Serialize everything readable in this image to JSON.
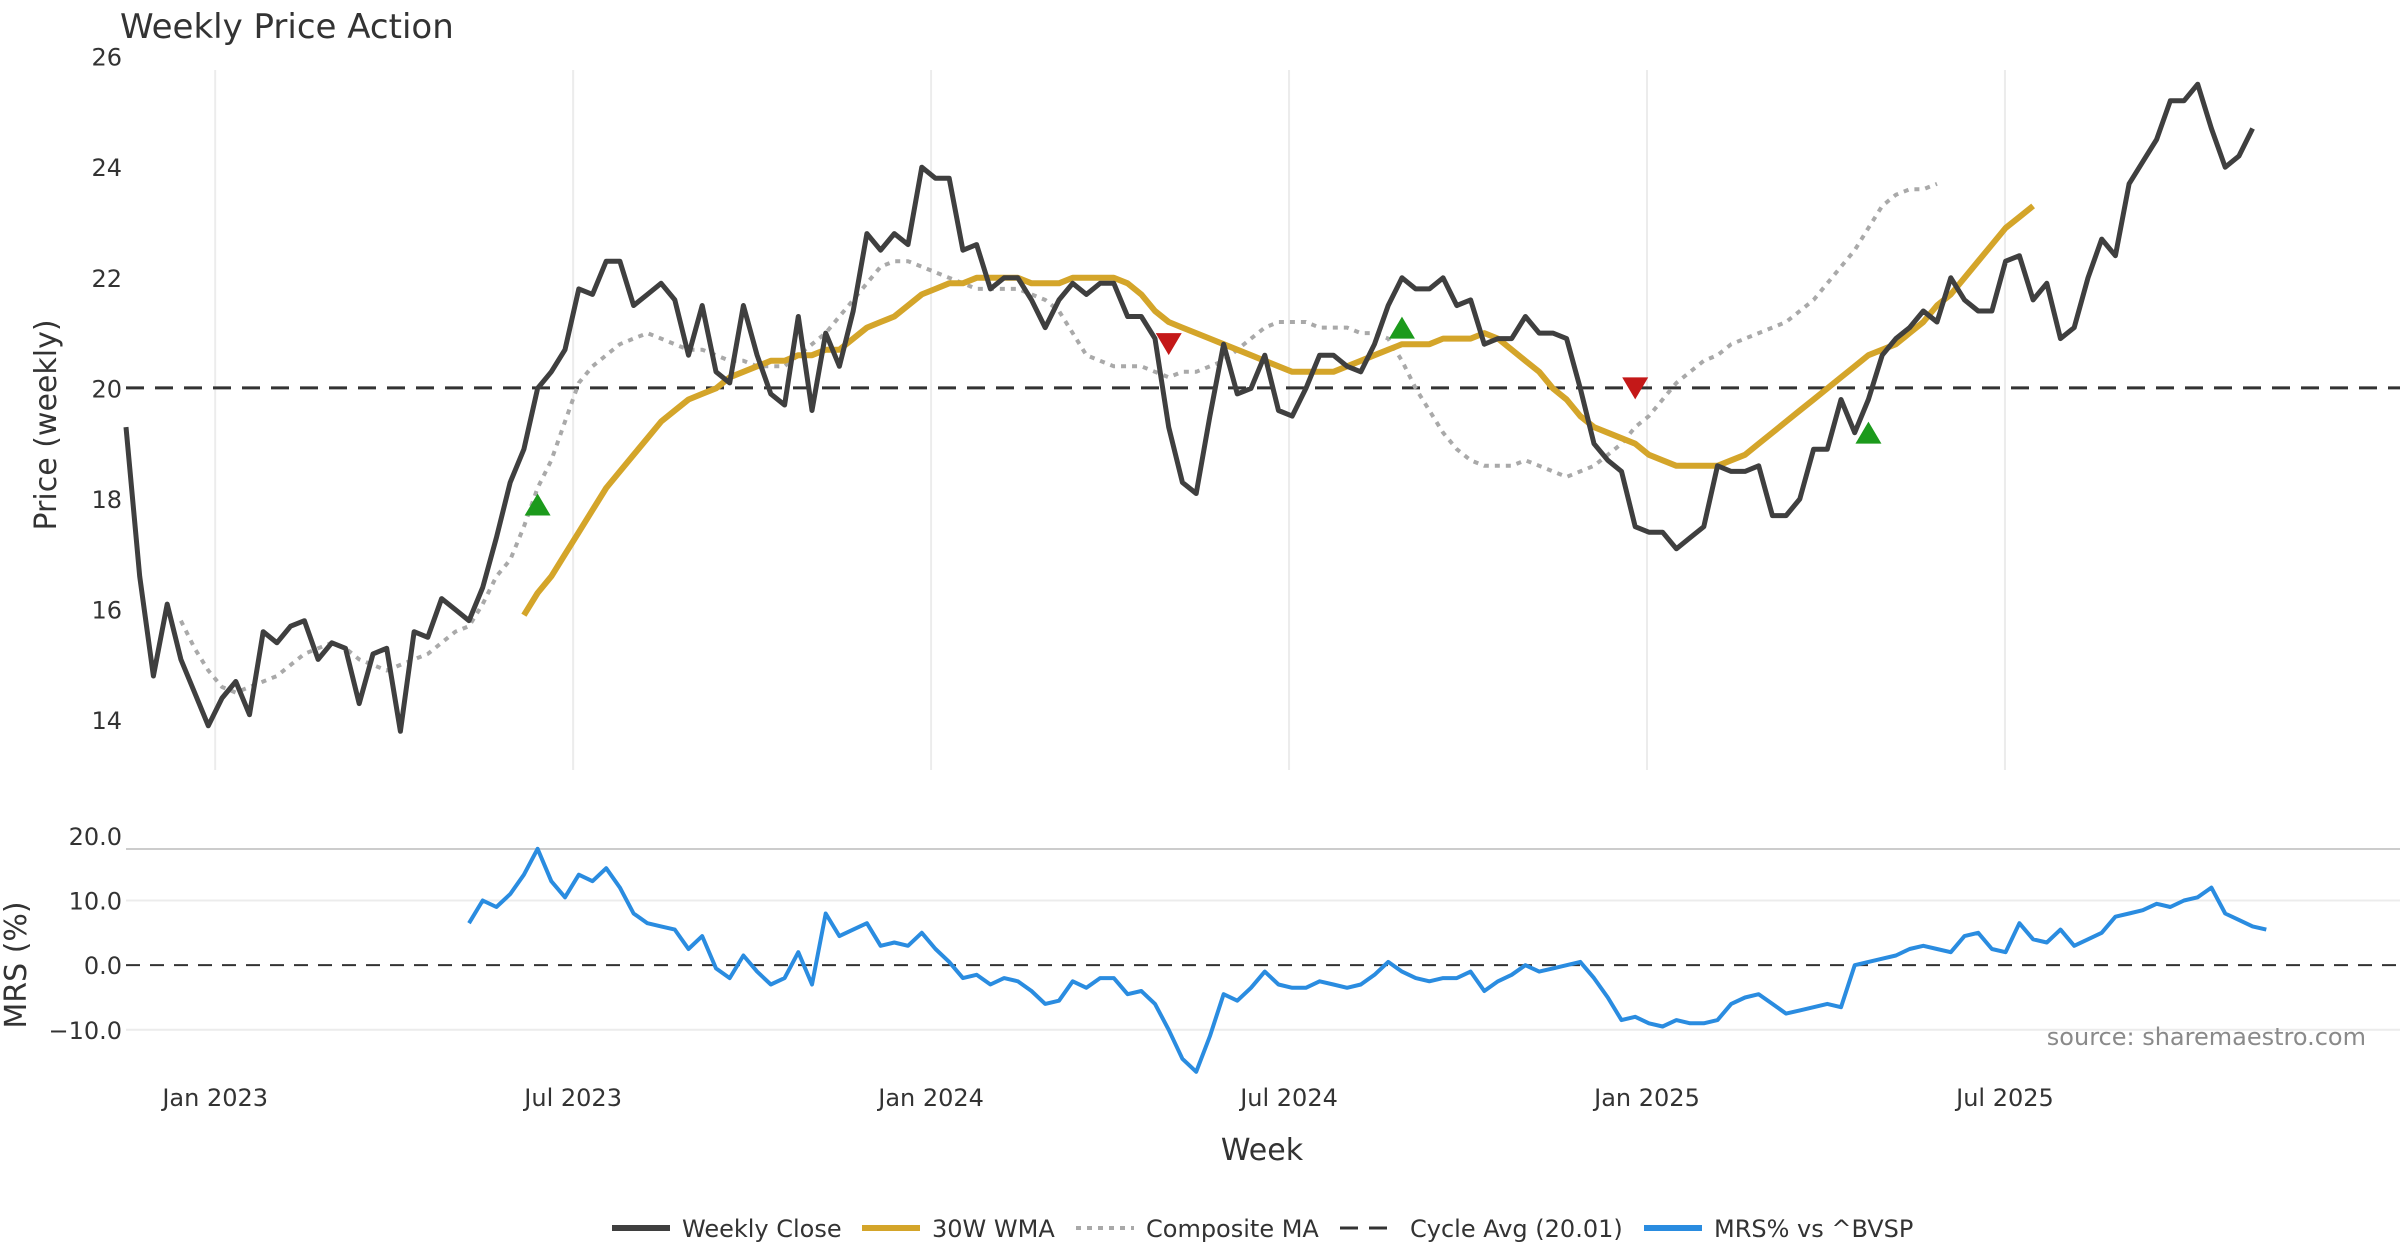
{
  "chart_data": {
    "type": "line",
    "title": "Weekly Price Action",
    "xlabel": "Week",
    "x_ticks": [
      "Jan 2023",
      "Jul 2023",
      "Jan 2024",
      "Jul 2024",
      "Jan 2025",
      "Jul 2025"
    ],
    "source": "source: sharemaestro.com",
    "price_panel": {
      "ylabel": "Price (weekly)",
      "ylim": [
        13.1,
        26.3
      ],
      "y_ticks": [
        "14",
        "16",
        "18",
        "20",
        "22",
        "24",
        "26"
      ],
      "cycle_avg": 20.01,
      "series": [
        {
          "name": "Weekly Close",
          "start_week": 0,
          "values": [
            19.3,
            16.6,
            14.8,
            16.1,
            15.1,
            14.5,
            13.9,
            14.4,
            14.7,
            14.1,
            15.6,
            15.4,
            15.7,
            15.8,
            15.1,
            15.4,
            15.3,
            14.3,
            15.2,
            15.3,
            13.8,
            15.6,
            15.5,
            16.2,
            16.0,
            15.8,
            16.4,
            17.3,
            18.3,
            18.9,
            20.0,
            20.3,
            20.7,
            21.8,
            21.7,
            22.3,
            22.3,
            21.5,
            21.7,
            21.9,
            21.6,
            20.6,
            21.5,
            20.3,
            20.1,
            21.5,
            20.6,
            19.9,
            19.7,
            21.3,
            19.6,
            21.0,
            20.4,
            21.4,
            22.8,
            22.5,
            22.8,
            22.6,
            24.0,
            23.8,
            23.8,
            22.5,
            22.6,
            21.8,
            22.0,
            22.0,
            21.6,
            21.1,
            21.6,
            21.9,
            21.7,
            21.9,
            21.9,
            21.3,
            21.3,
            20.9,
            19.3,
            18.3,
            18.1,
            19.5,
            20.8,
            19.9,
            20.0,
            20.6,
            19.6,
            19.5,
            20.0,
            20.6,
            20.6,
            20.4,
            20.3,
            20.8,
            21.5,
            22.0,
            21.8,
            21.8,
            22.0,
            21.5,
            21.6,
            20.8,
            20.9,
            20.9,
            21.3,
            21.0,
            21.0,
            20.9,
            20.0,
            19.0,
            18.7,
            18.5,
            17.5,
            17.4,
            17.4,
            17.1,
            17.3,
            17.5,
            18.6,
            18.5,
            18.5,
            18.6,
            17.7,
            17.7,
            18.0,
            18.9,
            18.9,
            19.8,
            19.2,
            19.8,
            20.6,
            20.9,
            21.1,
            21.4,
            21.2,
            22.0,
            21.6,
            21.4,
            21.4,
            22.3,
            22.4,
            21.6,
            21.9,
            20.9,
            21.1,
            22.0,
            22.7,
            22.4,
            23.7,
            24.1,
            24.5,
            25.2,
            25.2,
            25.5,
            24.7,
            24.0,
            24.2,
            24.7
          ]
        },
        {
          "name": "30W WMA",
          "start_week": 29,
          "values": [
            15.9,
            16.3,
            16.6,
            17.0,
            17.4,
            17.8,
            18.2,
            18.5,
            18.8,
            19.1,
            19.4,
            19.6,
            19.8,
            19.9,
            20.0,
            20.2,
            20.3,
            20.4,
            20.5,
            20.5,
            20.6,
            20.6,
            20.7,
            20.7,
            20.9,
            21.1,
            21.2,
            21.3,
            21.5,
            21.7,
            21.8,
            21.9,
            21.9,
            22.0,
            22.0,
            22.0,
            22.0,
            21.9,
            21.9,
            21.9,
            22.0,
            22.0,
            22.0,
            22.0,
            21.9,
            21.7,
            21.4,
            21.2,
            21.1,
            21.0,
            20.9,
            20.8,
            20.7,
            20.6,
            20.5,
            20.4,
            20.3,
            20.3,
            20.3,
            20.3,
            20.4,
            20.5,
            20.6,
            20.7,
            20.8,
            20.8,
            20.8,
            20.9,
            20.9,
            20.9,
            21.0,
            20.9,
            20.7,
            20.5,
            20.3,
            20.0,
            19.8,
            19.5,
            19.3,
            19.2,
            19.1,
            19.0,
            18.8,
            18.7,
            18.6,
            18.6,
            18.6,
            18.6,
            18.7,
            18.8,
            19.0,
            19.2,
            19.4,
            19.6,
            19.8,
            20.0,
            20.2,
            20.4,
            20.6,
            20.7,
            20.8,
            21.0,
            21.2,
            21.5,
            21.7,
            22.0,
            22.3,
            22.6,
            22.9,
            23.1,
            23.3
          ]
        },
        {
          "name": "Composite MA",
          "start_week": 4,
          "values": [
            15.8,
            15.3,
            14.9,
            14.6,
            14.5,
            14.6,
            14.7,
            14.8,
            15.0,
            15.2,
            15.3,
            15.4,
            15.3,
            15.1,
            15.0,
            14.9,
            15.0,
            15.1,
            15.2,
            15.4,
            15.6,
            15.7,
            16.1,
            16.6,
            16.9,
            17.5,
            18.2,
            18.7,
            19.4,
            20.1,
            20.4,
            20.6,
            20.8,
            20.9,
            21.0,
            20.9,
            20.8,
            20.7,
            20.7,
            20.6,
            20.5,
            20.5,
            20.4,
            20.4,
            20.4,
            20.6,
            20.8,
            21.0,
            21.3,
            21.6,
            21.9,
            22.2,
            22.3,
            22.3,
            22.2,
            22.1,
            22.0,
            21.9,
            21.8,
            21.8,
            21.8,
            21.8,
            21.7,
            21.6,
            21.4,
            21.0,
            20.6,
            20.5,
            20.4,
            20.4,
            20.4,
            20.3,
            20.2,
            20.3,
            20.3,
            20.4,
            20.5,
            20.7,
            20.9,
            21.1,
            21.2,
            21.2,
            21.2,
            21.1,
            21.1,
            21.1,
            21.0,
            21.0,
            20.9,
            20.5,
            20.0,
            19.6,
            19.2,
            18.9,
            18.7,
            18.6,
            18.6,
            18.6,
            18.7,
            18.6,
            18.5,
            18.4,
            18.5,
            18.6,
            18.8,
            19.0,
            19.3,
            19.5,
            19.8,
            20.1,
            20.3,
            20.5,
            20.6,
            20.8,
            20.9,
            21.0,
            21.1,
            21.2,
            21.4,
            21.6,
            21.9,
            22.2,
            22.5,
            22.9,
            23.3,
            23.5,
            23.6,
            23.6,
            23.7
          ]
        }
      ],
      "buy_markers": [
        {
          "week": 30,
          "price": 17.9
        },
        {
          "week": 93,
          "price": 21.1
        },
        {
          "week": 127,
          "price": 19.2
        }
      ],
      "sell_markers": [
        {
          "week": 76,
          "price": 20.8
        },
        {
          "week": 110,
          "price": 20.0
        }
      ]
    },
    "mrs_panel": {
      "ylabel": "MRS (%)",
      "ylim": [
        -17,
        22
      ],
      "y_ticks": [
        "20.0",
        "10.0",
        "0.0",
        "−10.0"
      ],
      "series": [
        {
          "name": "MRS% vs ^BVSP",
          "start_week": 25,
          "values": [
            6.5,
            10.0,
            9.0,
            11.0,
            14.0,
            18.0,
            13.0,
            10.5,
            14.0,
            13.0,
            15.0,
            12.0,
            8.0,
            6.5,
            6.0,
            5.5,
            2.5,
            4.5,
            -0.5,
            -2.0,
            1.5,
            -1.0,
            -3.0,
            -2.0,
            2.0,
            -3.0,
            8.0,
            4.5,
            5.5,
            6.5,
            3.0,
            3.5,
            3.0,
            5.0,
            2.5,
            0.5,
            -2.0,
            -1.5,
            -3.0,
            -2.0,
            -2.5,
            -4.0,
            -6.0,
            -5.5,
            -2.5,
            -3.5,
            -2.0,
            -2.0,
            -4.5,
            -4.0,
            -6.0,
            -10.0,
            -14.5,
            -16.5,
            -11.0,
            -4.5,
            -5.5,
            -3.5,
            -1.0,
            -3.0,
            -3.5,
            -3.5,
            -2.5,
            -3.0,
            -3.5,
            -3.0,
            -1.5,
            0.5,
            -1.0,
            -2.0,
            -2.5,
            -2.0,
            -2.0,
            -1.0,
            -4.0,
            -2.5,
            -1.5,
            0.0,
            -1.0,
            -0.5,
            0.0,
            0.5,
            -2.0,
            -5.0,
            -8.5,
            -8.0,
            -9.0,
            -9.5,
            -8.5,
            -9.0,
            -9.0,
            -8.5,
            -6.0,
            -5.0,
            -4.5,
            -6.0,
            -7.5,
            -7.0,
            -6.5,
            -6.0,
            -6.5,
            0.0,
            0.5,
            1.0,
            1.5,
            2.5,
            3.0,
            2.5,
            2.0,
            4.5,
            5.0,
            2.5,
            2.0,
            6.5,
            4.0,
            3.5,
            5.5,
            3.0,
            4.0,
            5.0,
            7.5,
            8.0,
            8.5,
            9.5,
            9.0,
            10.0,
            10.5,
            12.0,
            8.0,
            7.0,
            6.0,
            5.5
          ]
        }
      ]
    },
    "legend": {
      "placement": "bottom-center",
      "entries": [
        "Weekly Close",
        "30W WMA",
        "Composite MA",
        "Cycle Avg (20.01)",
        "MRS% vs ^BVSP"
      ]
    },
    "colors": {
      "weekly_close": "#3f3f3f",
      "wma": "#d4a52a",
      "composite": "#a9a9a9",
      "cycle_avg": "#333333",
      "mrs": "#2a8ce0",
      "buy": "#1c9a1c",
      "sell": "#c41818",
      "grid": "#ececec"
    }
  }
}
